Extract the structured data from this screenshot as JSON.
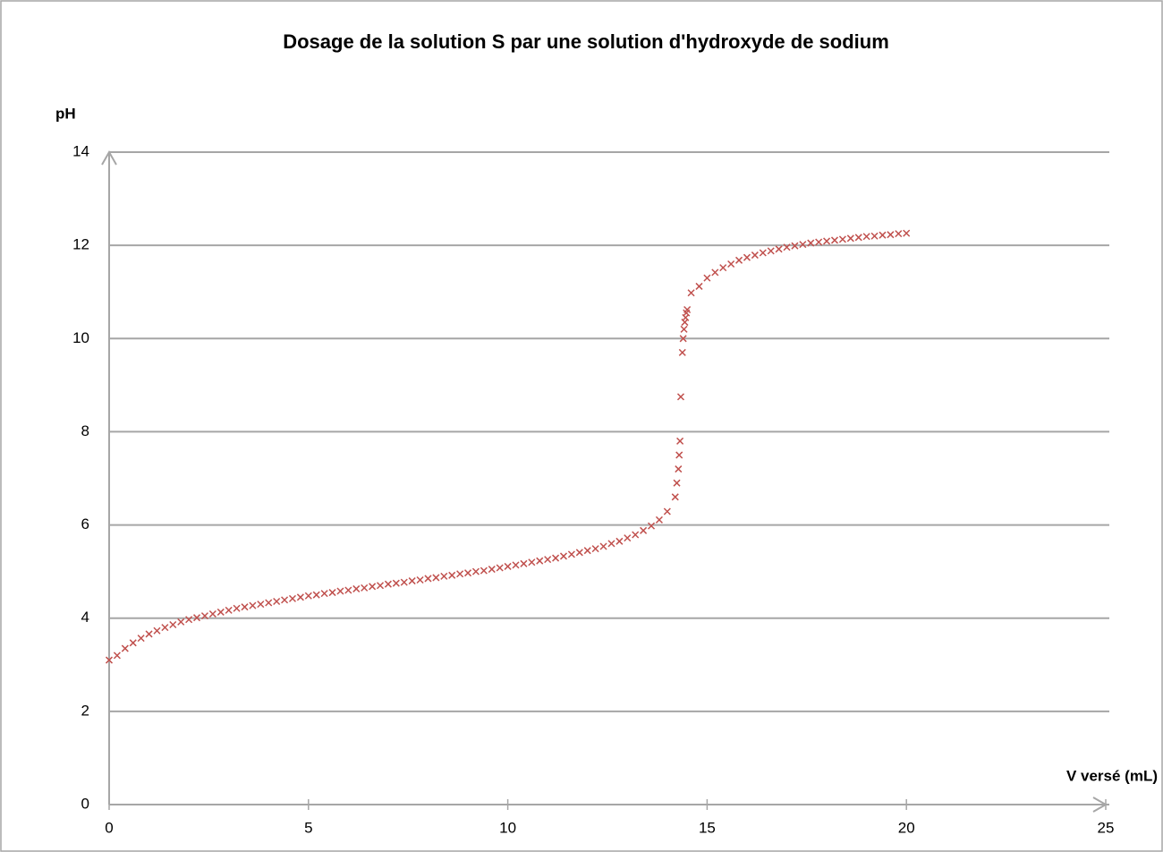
{
  "chart_data": {
    "type": "scatter",
    "title": "Dosage de la solution S par une solution d'hydroxyde de sodium",
    "ylabel": "pH",
    "xlabel": "V versé (mL)",
    "color": "#c0504d",
    "marker": "x",
    "grid": true,
    "xlim": [
      0,
      25
    ],
    "xticks": [
      0,
      5,
      10,
      15,
      20,
      25
    ],
    "ylim": [
      0,
      14
    ],
    "yticks": [
      0,
      2,
      4,
      6,
      8,
      10,
      12,
      14
    ],
    "x": [
      0,
      0.2,
      0.4,
      0.6,
      0.8,
      1.0,
      1.2,
      1.4,
      1.6,
      1.8,
      2.0,
      2.2,
      2.4,
      2.6,
      2.8,
      3.0,
      3.2,
      3.4,
      3.6,
      3.8,
      4.0,
      4.2,
      4.4,
      4.6,
      4.8,
      5.0,
      5.2,
      5.4,
      5.6,
      5.8,
      6.0,
      6.2,
      6.4,
      6.6,
      6.8,
      7.0,
      7.2,
      7.4,
      7.6,
      7.8,
      8.0,
      8.2,
      8.4,
      8.6,
      8.8,
      9.0,
      9.2,
      9.4,
      9.6,
      9.8,
      10.0,
      10.2,
      10.4,
      10.6,
      10.8,
      11.0,
      11.2,
      11.4,
      11.6,
      11.8,
      12.0,
      12.2,
      12.4,
      12.6,
      12.8,
      13.0,
      13.2,
      13.4,
      13.6,
      13.8,
      14.0,
      14.2,
      14.24,
      14.28,
      14.3,
      14.32,
      14.34,
      14.38,
      14.4,
      14.42,
      14.44,
      14.46,
      14.48,
      14.5,
      14.6,
      14.8,
      15.0,
      15.2,
      15.4,
      15.6,
      15.8,
      16.0,
      16.2,
      16.4,
      16.6,
      16.8,
      17.0,
      17.2,
      17.4,
      17.6,
      17.8,
      18.0,
      18.2,
      18.4,
      18.6,
      18.8,
      19.0,
      19.2,
      19.4,
      19.6,
      19.8,
      20.0
    ],
    "values": [
      3.1,
      3.2,
      3.35,
      3.47,
      3.57,
      3.66,
      3.73,
      3.8,
      3.86,
      3.92,
      3.97,
      4.01,
      4.05,
      4.09,
      4.13,
      4.17,
      4.21,
      4.24,
      4.27,
      4.3,
      4.33,
      4.36,
      4.39,
      4.42,
      4.45,
      4.48,
      4.5,
      4.53,
      4.55,
      4.58,
      4.6,
      4.63,
      4.65,
      4.68,
      4.7,
      4.73,
      4.75,
      4.77,
      4.8,
      4.82,
      4.85,
      4.87,
      4.9,
      4.92,
      4.95,
      4.97,
      5.0,
      5.02,
      5.05,
      5.08,
      5.11,
      5.14,
      5.17,
      5.2,
      5.23,
      5.26,
      5.29,
      5.33,
      5.37,
      5.41,
      5.45,
      5.49,
      5.54,
      5.6,
      5.65,
      5.72,
      5.79,
      5.88,
      5.98,
      6.11,
      6.29,
      6.6,
      6.9,
      7.2,
      7.5,
      7.8,
      8.75,
      9.7,
      10.0,
      10.2,
      10.35,
      10.45,
      10.55,
      10.62,
      10.98,
      11.12,
      11.3,
      11.42,
      11.52,
      11.6,
      11.68,
      11.74,
      11.79,
      11.84,
      11.88,
      11.92,
      11.96,
      11.99,
      12.02,
      12.05,
      12.07,
      12.09,
      12.11,
      12.13,
      12.15,
      12.17,
      12.19,
      12.2,
      12.22,
      12.23,
      12.25,
      12.26
    ]
  }
}
